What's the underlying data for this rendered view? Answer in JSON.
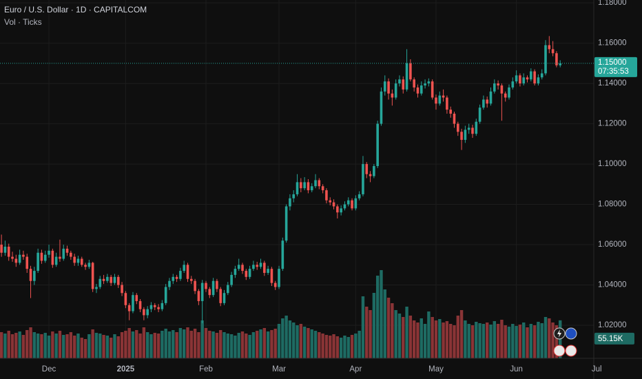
{
  "chart_data": {
    "type": "candlestick",
    "title": "Euro / U.S. Dollar · 1D · CAPITALCOM",
    "subtitle": "Vol · Ticks",
    "up_color": "#26a69a",
    "down_color": "#ef5350",
    "volume_up_color": "#1e6b63",
    "volume_down_color": "#8a3436",
    "grid": true,
    "xlim": [
      -0.4,
      162.2
    ],
    "xticks": [
      {
        "value": 13,
        "label": "Dec"
      },
      {
        "value": 34,
        "label": "2025"
      },
      {
        "value": 56,
        "label": "Feb"
      },
      {
        "value": 76,
        "label": "Mar"
      },
      {
        "value": 97,
        "label": "Apr"
      },
      {
        "value": 119,
        "label": "May"
      },
      {
        "value": 141,
        "label": "Jun"
      },
      {
        "value": 163,
        "label": "Jul"
      }
    ],
    "ylim": [
      1.0036,
      1.1814
    ],
    "yticks": [
      {
        "value": 1.02,
        "label": "1.02000"
      },
      {
        "value": 1.04,
        "label": "1.04000"
      },
      {
        "value": 1.06,
        "label": "1.06000"
      },
      {
        "value": 1.08,
        "label": "1.08000"
      },
      {
        "value": 1.1,
        "label": "1.10000"
      },
      {
        "value": 1.12,
        "label": "1.12000"
      },
      {
        "value": 1.14,
        "label": "1.14000"
      },
      {
        "value": 1.16,
        "label": "1.16000"
      },
      {
        "value": 1.18,
        "label": "1.18000"
      }
    ],
    "last_price": {
      "value": 1.15,
      "label": "1.15000"
    },
    "countdown": "07:35:53",
    "volume_last_label": "55.15K",
    "ohlc": [
      [
        1.06,
        1.065,
        1.054,
        1.056
      ],
      [
        1.056,
        1.062,
        1.0545,
        1.059
      ],
      [
        1.059,
        1.0605,
        1.052,
        1.054
      ],
      [
        1.054,
        1.0565,
        1.0515,
        1.053
      ],
      [
        1.053,
        1.055,
        1.049,
        1.051
      ],
      [
        1.051,
        1.0575,
        1.05,
        1.055
      ],
      [
        1.055,
        1.057,
        1.0525,
        1.054
      ],
      [
        1.054,
        1.0555,
        1.046,
        1.048
      ],
      [
        1.048,
        1.0495,
        1.0335,
        1.042
      ],
      [
        1.042,
        1.049,
        1.04,
        1.047
      ],
      [
        1.047,
        1.058,
        1.046,
        1.056
      ],
      [
        1.056,
        1.0575,
        1.0505,
        1.052
      ],
      [
        1.052,
        1.057,
        1.051,
        1.055
      ],
      [
        1.055,
        1.06,
        1.0535,
        1.057
      ],
      [
        1.057,
        1.058,
        1.0485,
        1.05
      ],
      [
        1.05,
        1.056,
        1.049,
        1.054
      ],
      [
        1.054,
        1.0625,
        1.0515,
        1.053
      ],
      [
        1.053,
        1.06,
        1.052,
        1.058
      ],
      [
        1.058,
        1.0595,
        1.0545,
        1.056
      ],
      [
        1.056,
        1.057,
        1.0525,
        1.054
      ],
      [
        1.054,
        1.0555,
        1.0495,
        1.051
      ],
      [
        1.051,
        1.0545,
        1.0495,
        1.053
      ],
      [
        1.053,
        1.054,
        1.049,
        1.05
      ],
      [
        1.05,
        1.051,
        1.0475,
        1.049
      ],
      [
        1.049,
        1.0525,
        1.048,
        1.051
      ],
      [
        1.051,
        1.0515,
        1.0365,
        1.038
      ],
      [
        1.038,
        1.0405,
        1.036,
        1.039
      ],
      [
        1.039,
        1.0445,
        1.038,
        1.043
      ],
      [
        1.043,
        1.045,
        1.0405,
        1.042
      ],
      [
        1.042,
        1.0455,
        1.041,
        1.044
      ],
      [
        1.044,
        1.045,
        1.0395,
        1.041
      ],
      [
        1.041,
        1.0455,
        1.04,
        1.044
      ],
      [
        1.044,
        1.045,
        1.0385,
        1.04
      ],
      [
        1.04,
        1.0415,
        1.0345,
        1.036
      ],
      [
        1.036,
        1.037,
        1.0285,
        1.03
      ],
      [
        1.03,
        1.031,
        1.0225,
        1.027
      ],
      [
        1.027,
        1.0365,
        1.026,
        1.035
      ],
      [
        1.035,
        1.036,
        1.0305,
        1.032
      ],
      [
        1.032,
        1.033,
        1.0265,
        1.028
      ],
      [
        1.028,
        1.029,
        1.0225,
        1.025
      ],
      [
        1.025,
        1.0295,
        1.0235,
        1.028
      ],
      [
        1.028,
        1.0315,
        1.0265,
        1.03
      ],
      [
        1.03,
        1.031,
        1.0275,
        1.029
      ],
      [
        1.029,
        1.0305,
        1.0265,
        1.028
      ],
      [
        1.028,
        1.0325,
        1.027,
        1.031
      ],
      [
        1.031,
        1.0405,
        1.03,
        1.039
      ],
      [
        1.039,
        1.0435,
        1.0375,
        1.042
      ],
      [
        1.042,
        1.0455,
        1.0405,
        1.044
      ],
      [
        1.044,
        1.045,
        1.0415,
        1.043
      ],
      [
        1.043,
        1.0485,
        1.042,
        1.047
      ],
      [
        1.047,
        1.052,
        1.046,
        1.05
      ],
      [
        1.05,
        1.051,
        1.0415,
        1.043
      ],
      [
        1.043,
        1.0445,
        1.0405,
        1.042
      ],
      [
        1.042,
        1.043,
        1.0355,
        1.037
      ],
      [
        1.037,
        1.038,
        1.03,
        1.032
      ],
      [
        1.032,
        1.0425,
        1.021,
        1.041
      ],
      [
        1.041,
        1.042,
        1.0365,
        1.038
      ],
      [
        1.038,
        1.039,
        1.0335,
        1.035
      ],
      [
        1.035,
        1.0435,
        1.034,
        1.042
      ],
      [
        1.042,
        1.043,
        1.0365,
        1.038
      ],
      [
        1.038,
        1.039,
        1.0295,
        1.031
      ],
      [
        1.031,
        1.0375,
        1.03,
        1.036
      ],
      [
        1.036,
        1.0415,
        1.035,
        1.04
      ],
      [
        1.04,
        1.0465,
        1.039,
        1.045
      ],
      [
        1.045,
        1.0495,
        1.0435,
        1.048
      ],
      [
        1.048,
        1.053,
        1.047,
        1.05
      ],
      [
        1.05,
        1.051,
        1.0455,
        1.047
      ],
      [
        1.047,
        1.048,
        1.0425,
        1.044
      ],
      [
        1.044,
        1.0495,
        1.043,
        1.048
      ],
      [
        1.048,
        1.052,
        1.047,
        1.05
      ],
      [
        1.05,
        1.0515,
        1.0475,
        1.049
      ],
      [
        1.049,
        1.053,
        1.048,
        1.051
      ],
      [
        1.051,
        1.052,
        1.0445,
        1.046
      ],
      [
        1.046,
        1.0495,
        1.045,
        1.048
      ],
      [
        1.048,
        1.049,
        1.0395,
        1.041
      ],
      [
        1.041,
        1.042,
        1.0375,
        1.039
      ],
      [
        1.039,
        1.0495,
        1.038,
        1.048
      ],
      [
        1.048,
        1.0635,
        1.047,
        1.062
      ],
      [
        1.062,
        1.08,
        1.061,
        1.079
      ],
      [
        1.079,
        1.085,
        1.077,
        1.083
      ],
      [
        1.083,
        1.087,
        1.081,
        1.085
      ],
      [
        1.085,
        1.095,
        1.084,
        1.091
      ],
      [
        1.091,
        1.093,
        1.086,
        1.088
      ],
      [
        1.088,
        1.0935,
        1.087,
        1.091
      ],
      [
        1.091,
        1.0925,
        1.0855,
        1.087
      ],
      [
        1.087,
        1.0905,
        1.086,
        1.089
      ],
      [
        1.089,
        1.095,
        1.088,
        1.092
      ],
      [
        1.092,
        1.093,
        1.0875,
        1.089
      ],
      [
        1.089,
        1.09,
        1.0855,
        1.087
      ],
      [
        1.087,
        1.088,
        1.0805,
        1.082
      ],
      [
        1.082,
        1.0835,
        1.0795,
        1.081
      ],
      [
        1.081,
        1.0825,
        1.0775,
        1.079
      ],
      [
        1.079,
        1.08,
        1.073,
        1.076
      ],
      [
        1.076,
        1.0795,
        1.0745,
        1.078
      ],
      [
        1.078,
        1.0815,
        1.077,
        1.08
      ],
      [
        1.08,
        1.0835,
        1.079,
        1.082
      ],
      [
        1.082,
        1.083,
        1.077,
        1.078
      ],
      [
        1.078,
        1.0845,
        1.077,
        1.083
      ],
      [
        1.083,
        1.0865,
        1.082,
        1.085
      ],
      [
        1.085,
        1.104,
        1.084,
        1.1
      ],
      [
        1.1,
        1.101,
        1.093,
        1.095
      ],
      [
        1.095,
        1.0965,
        1.091,
        1.094
      ],
      [
        1.094,
        1.1,
        1.093,
        1.099
      ],
      [
        1.099,
        1.1215,
        1.098,
        1.12
      ],
      [
        1.12,
        1.138,
        1.119,
        1.136
      ],
      [
        1.136,
        1.144,
        1.134,
        1.141
      ],
      [
        1.141,
        1.1425,
        1.132,
        1.135
      ],
      [
        1.135,
        1.137,
        1.129,
        1.133
      ],
      [
        1.133,
        1.142,
        1.132,
        1.14
      ],
      [
        1.14,
        1.144,
        1.1385,
        1.142
      ],
      [
        1.142,
        1.1435,
        1.135,
        1.137
      ],
      [
        1.137,
        1.157,
        1.136,
        1.15
      ],
      [
        1.15,
        1.152,
        1.141,
        1.142
      ],
      [
        1.142,
        1.143,
        1.136,
        1.138
      ],
      [
        1.138,
        1.1395,
        1.133,
        1.135
      ],
      [
        1.135,
        1.141,
        1.134,
        1.139
      ],
      [
        1.139,
        1.142,
        1.1375,
        1.14
      ],
      [
        1.14,
        1.1425,
        1.1385,
        1.141
      ],
      [
        1.141,
        1.142,
        1.132,
        1.133
      ],
      [
        1.133,
        1.1345,
        1.127,
        1.13
      ],
      [
        1.13,
        1.136,
        1.129,
        1.134
      ],
      [
        1.134,
        1.137,
        1.131,
        1.133
      ],
      [
        1.133,
        1.134,
        1.125,
        1.127
      ],
      [
        1.127,
        1.1285,
        1.123,
        1.125
      ],
      [
        1.125,
        1.126,
        1.118,
        1.12
      ],
      [
        1.12,
        1.121,
        1.114,
        1.116
      ],
      [
        1.116,
        1.1175,
        1.107,
        1.112
      ],
      [
        1.112,
        1.119,
        1.1105,
        1.117
      ],
      [
        1.117,
        1.12,
        1.115,
        1.118
      ],
      [
        1.118,
        1.1195,
        1.113,
        1.115
      ],
      [
        1.115,
        1.1225,
        1.114,
        1.121
      ],
      [
        1.121,
        1.1295,
        1.12,
        1.128
      ],
      [
        1.128,
        1.134,
        1.127,
        1.132
      ],
      [
        1.132,
        1.1335,
        1.128,
        1.13
      ],
      [
        1.13,
        1.138,
        1.129,
        1.136
      ],
      [
        1.136,
        1.142,
        1.135,
        1.14
      ],
      [
        1.14,
        1.1415,
        1.137,
        1.139
      ],
      [
        1.139,
        1.14,
        1.1215,
        1.135
      ],
      [
        1.135,
        1.136,
        1.131,
        1.133
      ],
      [
        1.133,
        1.1395,
        1.132,
        1.138
      ],
      [
        1.138,
        1.143,
        1.137,
        1.141
      ],
      [
        1.141,
        1.1465,
        1.14,
        1.144
      ],
      [
        1.144,
        1.145,
        1.1385,
        1.14
      ],
      [
        1.14,
        1.145,
        1.139,
        1.143
      ],
      [
        1.143,
        1.144,
        1.1405,
        1.142
      ],
      [
        1.142,
        1.1475,
        1.141,
        1.146
      ],
      [
        1.146,
        1.147,
        1.139,
        1.14
      ],
      [
        1.14,
        1.1445,
        1.139,
        1.143
      ],
      [
        1.143,
        1.147,
        1.142,
        1.145
      ],
      [
        1.145,
        1.1615,
        1.144,
        1.159
      ],
      [
        1.159,
        1.1635,
        1.155,
        1.157
      ],
      [
        1.157,
        1.161,
        1.1535,
        1.155
      ],
      [
        1.155,
        1.156,
        1.148,
        1.149
      ],
      [
        1.149,
        1.1515,
        1.148,
        1.15
      ]
    ],
    "volume": [
      38,
      36,
      40,
      35,
      37,
      39,
      34,
      41,
      45,
      38,
      36,
      35,
      37,
      33,
      39,
      36,
      40,
      34,
      35,
      38,
      33,
      36,
      30,
      28,
      35,
      42,
      37,
      36,
      34,
      33,
      30,
      35,
      32,
      38,
      40,
      44,
      39,
      41,
      36,
      45,
      38,
      35,
      37,
      36,
      40,
      43,
      39,
      41,
      38,
      44,
      42,
      45,
      40,
      43,
      38,
      55,
      44,
      40,
      39,
      37,
      41,
      38,
      36,
      35,
      33,
      37,
      39,
      36,
      34,
      38,
      40,
      42,
      44,
      39,
      41,
      43,
      50,
      58,
      62,
      55,
      52,
      48,
      50,
      46,
      44,
      42,
      40,
      38,
      36,
      34,
      33,
      35,
      32,
      30,
      33,
      31,
      34,
      36,
      40,
      90,
      75,
      70,
      95,
      120,
      128,
      100,
      88,
      80,
      70,
      65,
      60,
      75,
      62,
      55,
      52,
      58,
      50,
      68,
      60,
      55,
      57,
      52,
      54,
      50,
      48,
      62,
      70,
      55,
      50,
      48,
      53,
      51,
      50,
      52,
      49,
      54,
      50,
      56,
      48,
      46,
      50,
      47,
      49,
      52,
      45,
      50,
      48,
      53,
      51,
      60,
      58,
      52,
      48,
      55.15
    ]
  }
}
